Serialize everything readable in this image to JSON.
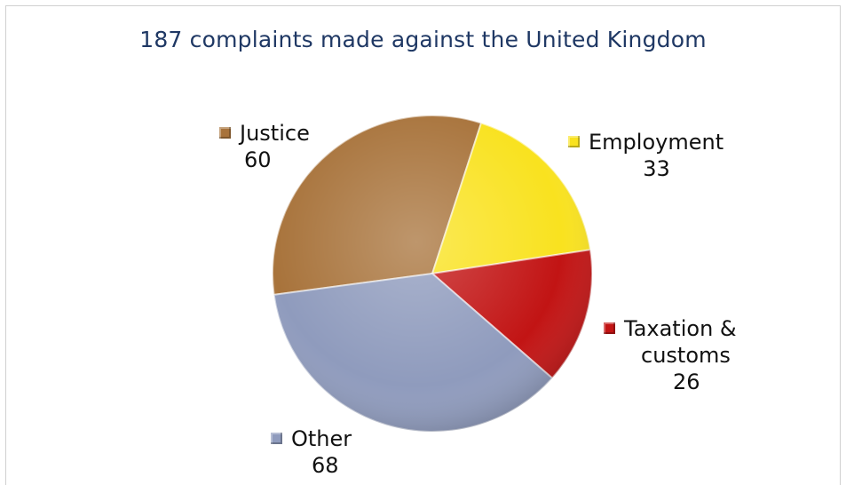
{
  "chart_data": {
    "type": "pie",
    "title": "187 complaints made against the United Kingdom",
    "slices": [
      {
        "label": "Justice",
        "value": 60,
        "color": "#a8733b"
      },
      {
        "label": "Employment",
        "value": 33,
        "color": "#f9e21f"
      },
      {
        "label": "Taxation & customs",
        "value": 26,
        "color": "#c21414"
      },
      {
        "label": "Other",
        "value": 68,
        "color": "#8f9bbd"
      }
    ],
    "legend": "inline-labels"
  },
  "labels": {
    "justice": {
      "name": "Justice",
      "value": "60"
    },
    "employment": {
      "name": "Employment",
      "value": "33"
    },
    "taxation": {
      "name_line1": "Taxation &",
      "name_line2": "customs",
      "value": "26"
    },
    "other": {
      "name": "Other",
      "value": "68"
    }
  }
}
